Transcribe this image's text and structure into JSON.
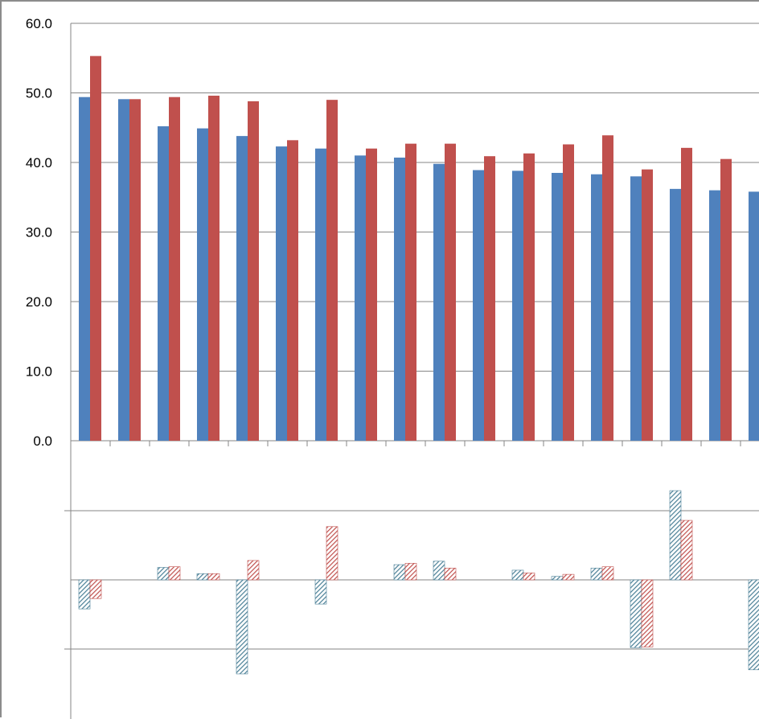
{
  "chart_data": {
    "type": "bar",
    "y_ticks": [
      "0.0",
      "10.0",
      "20.0",
      "30.0",
      "40.0",
      "50.0",
      "60.0"
    ],
    "ylim": [
      0,
      60
    ],
    "grid": true,
    "legend": "none",
    "colors": {
      "series_a": "#4f81bd",
      "series_b": "#c0504d",
      "hatch_a": "#4a7f96",
      "hatch_b": "#c0504d",
      "grid": "#868686",
      "axis": "#868686"
    },
    "series": [
      {
        "values": [
          49.4,
          49.1,
          45.2,
          44.9,
          43.8,
          42.3,
          42.0,
          41.0,
          40.7,
          39.8,
          38.9,
          38.8,
          38.5,
          38.3,
          38.0,
          36.2,
          36.0,
          35.8
        ]
      },
      {
        "values": [
          55.3,
          49.1,
          49.4,
          49.6,
          48.8,
          43.2,
          49.0,
          42.0,
          42.7,
          42.7,
          40.9,
          41.3,
          42.6,
          43.9,
          39.0,
          42.1,
          40.5,
          null
        ]
      }
    ],
    "change_series": [
      {
        "values": [
          -0.42,
          0.18,
          0.09,
          -1.36,
          -0.35,
          0.22,
          0.27,
          0.14,
          0.05,
          0.17,
          -0.98,
          1.29,
          -1.3
        ]
      },
      {
        "values": [
          -0.27,
          0.19,
          0.09,
          0.28,
          0.77,
          0.24,
          0.17,
          0.1,
          0.08,
          0.19,
          -0.97,
          0.86
        ]
      }
    ],
    "change_categories_a": [
      0,
      2,
      3,
      4,
      6,
      8,
      9,
      11,
      12,
      13,
      14,
      15,
      17
    ],
    "change_categories_b": [
      0,
      2,
      3,
      4,
      6,
      8,
      9,
      11,
      12,
      13,
      14,
      15
    ]
  }
}
